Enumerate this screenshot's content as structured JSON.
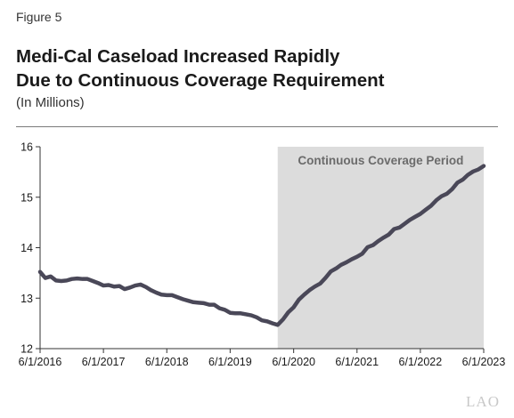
{
  "figure_label": "Figure 5",
  "title_line1": "Medi-Cal Caseload Increased Rapidly",
  "title_line2": "Due to Continuous Coverage Requirement",
  "subtitle": "(In Millions)",
  "logo_text": "LAO",
  "colors": {
    "line": "#4a4858",
    "shade": "#dcdcdc",
    "axis": "#333333"
  },
  "chart_data": {
    "type": "line",
    "title": "Medi-Cal Caseload Increased Rapidly Due to Continuous Coverage Requirement",
    "ylabel": "",
    "xlabel": "",
    "ylim": [
      12,
      16
    ],
    "yticks": [
      "12",
      "13",
      "14",
      "15",
      "16"
    ],
    "xlim": [
      "2016-06-01",
      "2023-06-01"
    ],
    "xticks": [
      {
        "date": "2016-06-01",
        "label": "6/1/2016"
      },
      {
        "date": "2017-06-01",
        "label": "6/1/2017"
      },
      {
        "date": "2018-06-01",
        "label": "6/1/2018"
      },
      {
        "date": "2019-06-01",
        "label": "6/1/2019"
      },
      {
        "date": "2020-06-01",
        "label": "6/1/2020"
      },
      {
        "date": "2021-06-01",
        "label": "6/1/2021"
      },
      {
        "date": "2022-06-01",
        "label": "6/1/2022"
      },
      {
        "date": "2023-06-01",
        "label": "6/1/2023"
      }
    ],
    "grid": false,
    "annotations": [
      {
        "label": "Continuous Coverage Period",
        "start": "2020-03-01",
        "end": "2023-06-01"
      }
    ],
    "series": [
      {
        "points": [
          [
            "2016-06-01",
            13.52
          ],
          [
            "2016-07-01",
            13.4
          ],
          [
            "2016-08-01",
            13.43
          ],
          [
            "2016-09-01",
            13.35
          ],
          [
            "2016-10-01",
            13.34
          ],
          [
            "2016-11-01",
            13.35
          ],
          [
            "2016-12-01",
            13.38
          ],
          [
            "2017-01-01",
            13.39
          ],
          [
            "2017-02-01",
            13.38
          ],
          [
            "2017-03-01",
            13.38
          ],
          [
            "2017-04-01",
            13.34
          ],
          [
            "2017-05-01",
            13.3
          ],
          [
            "2017-06-01",
            13.25
          ],
          [
            "2017-07-01",
            13.26
          ],
          [
            "2017-08-01",
            13.23
          ],
          [
            "2017-09-01",
            13.24
          ],
          [
            "2017-10-01",
            13.18
          ],
          [
            "2017-11-01",
            13.21
          ],
          [
            "2017-12-01",
            13.25
          ],
          [
            "2018-01-01",
            13.27
          ],
          [
            "2018-02-01",
            13.22
          ],
          [
            "2018-03-01",
            13.16
          ],
          [
            "2018-04-01",
            13.11
          ],
          [
            "2018-05-01",
            13.07
          ],
          [
            "2018-06-01",
            13.06
          ],
          [
            "2018-07-01",
            13.06
          ],
          [
            "2018-08-01",
            13.02
          ],
          [
            "2018-09-01",
            12.98
          ],
          [
            "2018-10-01",
            12.95
          ],
          [
            "2018-11-01",
            12.92
          ],
          [
            "2018-12-01",
            12.91
          ],
          [
            "2019-01-01",
            12.9
          ],
          [
            "2019-02-01",
            12.87
          ],
          [
            "2019-03-01",
            12.87
          ],
          [
            "2019-04-01",
            12.8
          ],
          [
            "2019-05-01",
            12.77
          ],
          [
            "2019-06-01",
            12.71
          ],
          [
            "2019-07-01",
            12.7
          ],
          [
            "2019-08-01",
            12.7
          ],
          [
            "2019-09-01",
            12.68
          ],
          [
            "2019-10-01",
            12.66
          ],
          [
            "2019-11-01",
            12.62
          ],
          [
            "2019-12-01",
            12.56
          ],
          [
            "2020-01-01",
            12.54
          ],
          [
            "2020-02-01",
            12.5
          ],
          [
            "2020-03-01",
            12.47
          ],
          [
            "2020-04-01",
            12.58
          ],
          [
            "2020-05-01",
            12.72
          ],
          [
            "2020-06-01",
            12.82
          ],
          [
            "2020-07-01",
            12.97
          ],
          [
            "2020-08-01",
            13.07
          ],
          [
            "2020-09-01",
            13.16
          ],
          [
            "2020-10-01",
            13.23
          ],
          [
            "2020-11-01",
            13.29
          ],
          [
            "2020-12-01",
            13.4
          ],
          [
            "2021-01-01",
            13.53
          ],
          [
            "2021-02-01",
            13.59
          ],
          [
            "2021-03-01",
            13.66
          ],
          [
            "2021-04-01",
            13.71
          ],
          [
            "2021-05-01",
            13.77
          ],
          [
            "2021-06-01",
            13.82
          ],
          [
            "2021-07-01",
            13.88
          ],
          [
            "2021-08-01",
            14.01
          ],
          [
            "2021-09-01",
            14.05
          ],
          [
            "2021-10-01",
            14.13
          ],
          [
            "2021-11-01",
            14.2
          ],
          [
            "2021-12-01",
            14.26
          ],
          [
            "2022-01-01",
            14.37
          ],
          [
            "2022-02-01",
            14.4
          ],
          [
            "2022-03-01",
            14.47
          ],
          [
            "2022-04-01",
            14.55
          ],
          [
            "2022-05-01",
            14.61
          ],
          [
            "2022-06-01",
            14.67
          ],
          [
            "2022-07-01",
            14.75
          ],
          [
            "2022-08-01",
            14.83
          ],
          [
            "2022-09-01",
            14.94
          ],
          [
            "2022-10-01",
            15.02
          ],
          [
            "2022-11-01",
            15.07
          ],
          [
            "2022-12-01",
            15.16
          ],
          [
            "2023-01-01",
            15.29
          ],
          [
            "2023-02-01",
            15.35
          ],
          [
            "2023-03-01",
            15.44
          ],
          [
            "2023-04-01",
            15.51
          ],
          [
            "2023-05-01",
            15.55
          ],
          [
            "2023-06-01",
            15.62
          ]
        ]
      }
    ]
  }
}
